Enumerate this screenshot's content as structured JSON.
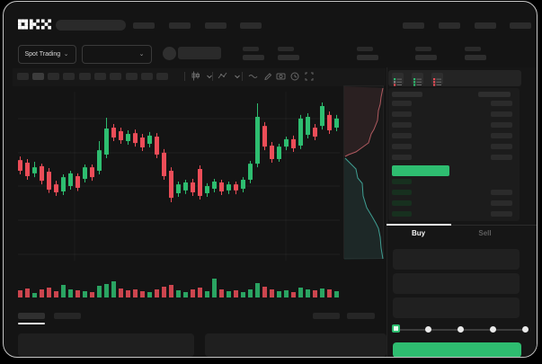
{
  "colors": {
    "up_green": "#2ebd70",
    "down_red": "#ec4d58",
    "ask_line": "#b05a60",
    "bid_line": "#3f9e92",
    "window_border": "#c6c6c6",
    "active_underline": "#f2f2f2"
  },
  "header": {
    "logo": "OKX"
  },
  "market_bar": {
    "mode_selector": "Spot Trading",
    "chevron": "⌄"
  },
  "toolbar": {
    "placeholder_buttons": 10,
    "active_placeholder_index": 1,
    "icons": [
      "candles-icon",
      "chevron-down-icon",
      "indicators-icon",
      "chevron-down-icon",
      "wave-icon",
      "pencil-icon",
      "camera-icon",
      "clock-icon",
      "expand-icon"
    ]
  },
  "order_book": {
    "view_icons": [
      "book-combined-icon",
      "book-bids-icon",
      "book-asks-icon"
    ],
    "ask_rows": 6,
    "bid_rows": 4,
    "last_price_highlight": "green"
  },
  "trade_form": {
    "buy_tab": "Buy",
    "sell_tab": "Sell",
    "active_tab": "Buy",
    "fields": 3,
    "slider_stops": 5,
    "slider_active_index": 0
  },
  "chart_data": {
    "type": "candlestick",
    "title": "",
    "xlabel": "",
    "ylabel": "",
    "value_scale": "relative 0-100 of chart height (no numeric axis labels visible)",
    "grid": true,
    "candles": [
      {
        "o": 58.9,
        "h": 61.0,
        "l": 50.5,
        "c": 52.6
      },
      {
        "o": 57.4,
        "h": 59.5,
        "l": 47.4,
        "c": 49.5
      },
      {
        "o": 51.1,
        "h": 57.9,
        "l": 48.9,
        "c": 54.7
      },
      {
        "o": 55.3,
        "h": 56.8,
        "l": 44.7,
        "c": 46.8
      },
      {
        "o": 52.1,
        "h": 54.2,
        "l": 39.7,
        "c": 41.6
      },
      {
        "o": 44.7,
        "h": 46.8,
        "l": 37.9,
        "c": 40.0
      },
      {
        "o": 40.5,
        "h": 50.5,
        "l": 38.4,
        "c": 48.9
      },
      {
        "o": 43.7,
        "h": 52.6,
        "l": 41.6,
        "c": 51.1
      },
      {
        "o": 49.5,
        "h": 51.1,
        "l": 40.8,
        "c": 42.6
      },
      {
        "o": 47.9,
        "h": 56.3,
        "l": 45.8,
        "c": 54.7
      },
      {
        "o": 54.7,
        "h": 56.3,
        "l": 46.8,
        "c": 48.9
      },
      {
        "o": 52.6,
        "h": 70.0,
        "l": 50.5,
        "c": 64.7
      },
      {
        "o": 62.1,
        "h": 83.7,
        "l": 60.0,
        "c": 77.4
      },
      {
        "o": 77.9,
        "h": 80.0,
        "l": 70.0,
        "c": 72.1
      },
      {
        "o": 75.8,
        "h": 77.9,
        "l": 68.4,
        "c": 70.5
      },
      {
        "o": 70.0,
        "h": 76.3,
        "l": 67.9,
        "c": 74.2
      },
      {
        "o": 74.7,
        "h": 76.8,
        "l": 66.8,
        "c": 68.9
      },
      {
        "o": 72.1,
        "h": 74.2,
        "l": 64.2,
        "c": 66.3
      },
      {
        "o": 68.4,
        "h": 75.3,
        "l": 66.3,
        "c": 73.2
      },
      {
        "o": 72.6,
        "h": 74.7,
        "l": 60.0,
        "c": 62.1
      },
      {
        "o": 63.2,
        "h": 65.3,
        "l": 47.4,
        "c": 49.5
      },
      {
        "o": 52.6,
        "h": 54.7,
        "l": 34.2,
        "c": 36.8
      },
      {
        "o": 39.5,
        "h": 46.3,
        "l": 37.4,
        "c": 44.7
      },
      {
        "o": 41.1,
        "h": 47.4,
        "l": 39.0,
        "c": 45.8
      },
      {
        "o": 45.8,
        "h": 47.9,
        "l": 37.9,
        "c": 40.0
      },
      {
        "o": 53.7,
        "h": 55.8,
        "l": 35.8,
        "c": 37.9
      },
      {
        "o": 39.5,
        "h": 45.3,
        "l": 37.4,
        "c": 43.7
      },
      {
        "o": 42.1,
        "h": 47.9,
        "l": 40.0,
        "c": 46.3
      },
      {
        "o": 45.8,
        "h": 47.4,
        "l": 38.4,
        "c": 40.5
      },
      {
        "o": 41.1,
        "h": 46.3,
        "l": 39.0,
        "c": 44.7
      },
      {
        "o": 44.7,
        "h": 46.3,
        "l": 38.9,
        "c": 41.1
      },
      {
        "o": 42.1,
        "h": 48.9,
        "l": 40.0,
        "c": 47.4
      },
      {
        "o": 47.4,
        "h": 58.4,
        "l": 45.3,
        "c": 56.8
      },
      {
        "o": 56.8,
        "h": 92.1,
        "l": 54.7,
        "c": 84.2
      },
      {
        "o": 78.9,
        "h": 81.1,
        "l": 64.7,
        "c": 66.8
      },
      {
        "o": 67.4,
        "h": 69.5,
        "l": 57.4,
        "c": 59.5
      },
      {
        "o": 59.5,
        "h": 68.4,
        "l": 57.9,
        "c": 66.8
      },
      {
        "o": 66.8,
        "h": 72.6,
        "l": 64.7,
        "c": 71.1
      },
      {
        "o": 71.1,
        "h": 73.2,
        "l": 63.7,
        "c": 65.8
      },
      {
        "o": 67.4,
        "h": 85.3,
        "l": 65.3,
        "c": 83.2
      },
      {
        "o": 73.7,
        "h": 86.3,
        "l": 71.6,
        "c": 84.2
      },
      {
        "o": 77.9,
        "h": 80.0,
        "l": 70.5,
        "c": 72.6
      },
      {
        "o": 78.9,
        "h": 92.6,
        "l": 76.8,
        "c": 90.5
      },
      {
        "o": 85.3,
        "h": 87.4,
        "l": 74.2,
        "c": 76.3
      },
      {
        "o": 77.9,
        "h": 85.3,
        "l": 75.8,
        "c": 83.2
      }
    ],
    "volumes": [
      {
        "h": 8,
        "dir": "down"
      },
      {
        "h": 10,
        "dir": "down"
      },
      {
        "h": 5,
        "dir": "up"
      },
      {
        "h": 9,
        "dir": "down"
      },
      {
        "h": 11,
        "dir": "down"
      },
      {
        "h": 7,
        "dir": "down"
      },
      {
        "h": 14,
        "dir": "up"
      },
      {
        "h": 9,
        "dir": "up"
      },
      {
        "h": 8,
        "dir": "down"
      },
      {
        "h": 7,
        "dir": "up"
      },
      {
        "h": 6,
        "dir": "down"
      },
      {
        "h": 13,
        "dir": "up"
      },
      {
        "h": 15,
        "dir": "up"
      },
      {
        "h": 18,
        "dir": "up"
      },
      {
        "h": 10,
        "dir": "down"
      },
      {
        "h": 8,
        "dir": "down"
      },
      {
        "h": 9,
        "dir": "down"
      },
      {
        "h": 7,
        "dir": "down"
      },
      {
        "h": 6,
        "dir": "up"
      },
      {
        "h": 9,
        "dir": "down"
      },
      {
        "h": 12,
        "dir": "down"
      },
      {
        "h": 14,
        "dir": "down"
      },
      {
        "h": 8,
        "dir": "up"
      },
      {
        "h": 6,
        "dir": "up"
      },
      {
        "h": 9,
        "dir": "down"
      },
      {
        "h": 11,
        "dir": "down"
      },
      {
        "h": 7,
        "dir": "up"
      },
      {
        "h": 21,
        "dir": "up"
      },
      {
        "h": 9,
        "dir": "down"
      },
      {
        "h": 7,
        "dir": "up"
      },
      {
        "h": 8,
        "dir": "down"
      },
      {
        "h": 6,
        "dir": "up"
      },
      {
        "h": 9,
        "dir": "up"
      },
      {
        "h": 16,
        "dir": "up"
      },
      {
        "h": 12,
        "dir": "down"
      },
      {
        "h": 9,
        "dir": "down"
      },
      {
        "h": 7,
        "dir": "up"
      },
      {
        "h": 8,
        "dir": "up"
      },
      {
        "h": 6,
        "dir": "down"
      },
      {
        "h": 11,
        "dir": "up"
      },
      {
        "h": 9,
        "dir": "up"
      },
      {
        "h": 8,
        "dir": "down"
      },
      {
        "h": 10,
        "dir": "up"
      },
      {
        "h": 9,
        "dir": "down"
      },
      {
        "h": 7,
        "dir": "up"
      }
    ],
    "depth_profile": {
      "width": 45,
      "height": 193,
      "asks_line": [
        [
          43,
          2
        ],
        [
          41,
          12
        ],
        [
          40,
          20
        ],
        [
          38,
          27
        ],
        [
          37,
          38
        ],
        [
          33,
          48
        ],
        [
          30,
          53
        ],
        [
          27,
          63
        ],
        [
          20,
          68
        ],
        [
          13,
          73
        ],
        [
          5,
          76
        ],
        [
          1,
          78
        ]
      ],
      "bids_line": [
        [
          1,
          80
        ],
        [
          8,
          87
        ],
        [
          13,
          92
        ],
        [
          15,
          102
        ],
        [
          20,
          108
        ],
        [
          21,
          122
        ],
        [
          25,
          135
        ],
        [
          31,
          145
        ],
        [
          35,
          152
        ],
        [
          38,
          158
        ],
        [
          40,
          168
        ],
        [
          41,
          180
        ],
        [
          43,
          192
        ]
      ]
    }
  }
}
